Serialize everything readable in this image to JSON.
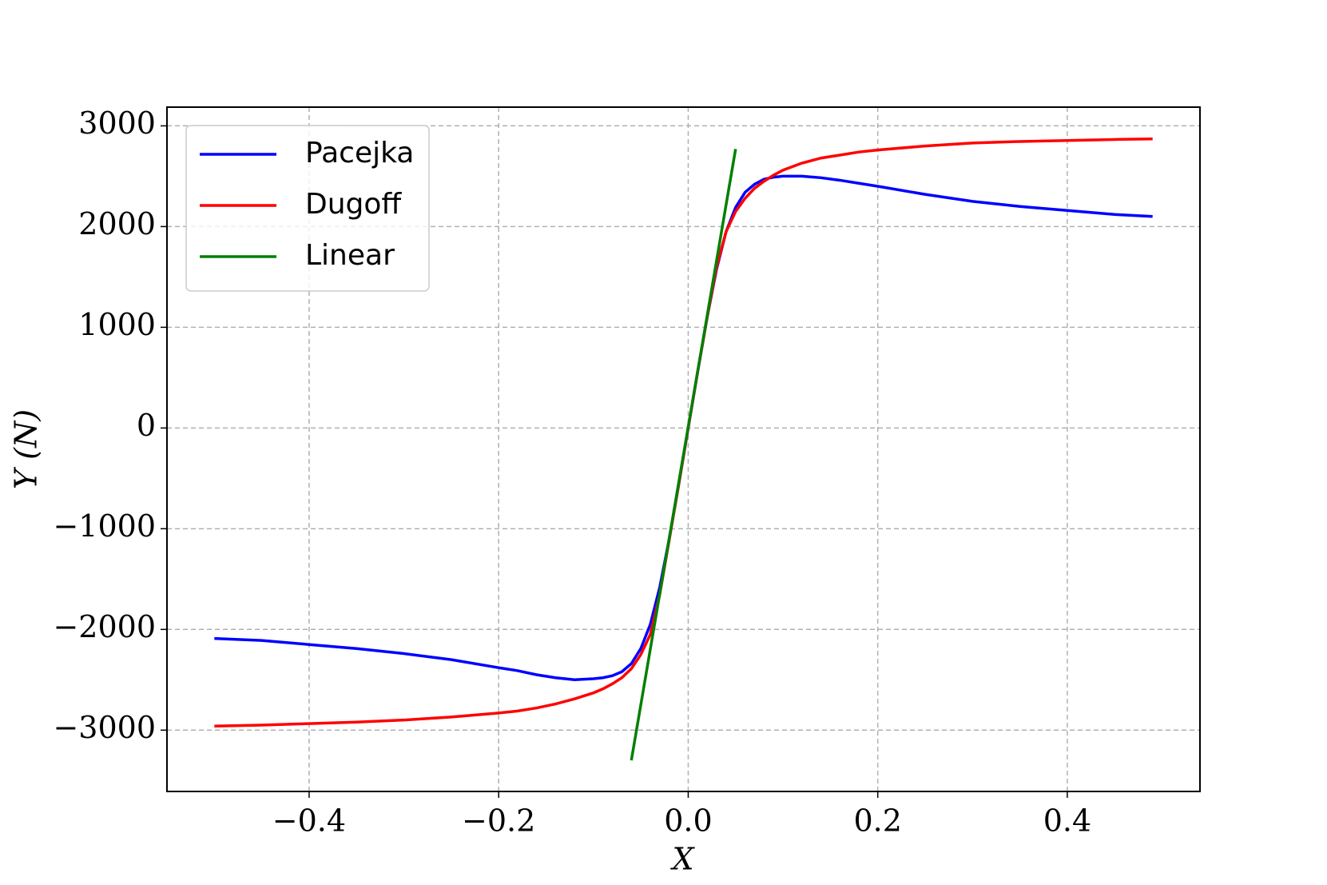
{
  "chart_data": {
    "type": "line",
    "x_label": "X",
    "y_label": "Y (N)",
    "x": [
      -0.5,
      -0.45,
      -0.4,
      -0.35,
      -0.3,
      -0.25,
      -0.2,
      -0.18,
      -0.16,
      -0.14,
      -0.12,
      -0.1,
      -0.09,
      -0.08,
      -0.07,
      -0.06,
      -0.05,
      -0.04,
      -0.03,
      -0.02,
      -0.01,
      0,
      0.01,
      0.02,
      0.03,
      0.04,
      0.05,
      0.06,
      0.07,
      0.08,
      0.09,
      0.1,
      0.12,
      0.14,
      0.16,
      0.18,
      0.2,
      0.25,
      0.3,
      0.35,
      0.4,
      0.45,
      0.49
    ],
    "series": [
      {
        "name": "Pacejka",
        "color": "#0000ff",
        "values": [
          -2090,
          -2110,
          -2150,
          -2190,
          -2240,
          -2300,
          -2380,
          -2410,
          -2450,
          -2480,
          -2500,
          -2490,
          -2480,
          -2460,
          -2420,
          -2340,
          -2190,
          -1950,
          -1580,
          -1100,
          -560,
          0,
          560,
          1100,
          1580,
          1950,
          2190,
          2340,
          2420,
          2470,
          2490,
          2500,
          2500,
          2485,
          2460,
          2430,
          2400,
          2320,
          2250,
          2200,
          2160,
          2120,
          2100
        ]
      },
      {
        "name": "Dugoff",
        "color": "#ff0000",
        "values": [
          -2960,
          -2950,
          -2935,
          -2920,
          -2900,
          -2870,
          -2830,
          -2810,
          -2780,
          -2740,
          -2690,
          -2630,
          -2590,
          -2540,
          -2480,
          -2390,
          -2250,
          -2050,
          -1650,
          -1110,
          -560,
          0,
          560,
          1100,
          1600,
          1950,
          2150,
          2280,
          2380,
          2450,
          2510,
          2560,
          2630,
          2680,
          2710,
          2740,
          2760,
          2800,
          2830,
          2845,
          2855,
          2865,
          2870
        ]
      },
      {
        "name": "Linear",
        "color": "#008000",
        "x": [
          -0.06,
          0.05
        ],
        "values": [
          -3300,
          2770
        ]
      }
    ],
    "xlim": [
      -0.55,
      0.54
    ],
    "ylim": [
      -3609,
      3186
    ],
    "xticks": [
      {
        "value": -0.4,
        "label": "−0.4"
      },
      {
        "value": -0.2,
        "label": "−0.2"
      },
      {
        "value": 0,
        "label": "0.0"
      },
      {
        "value": 0.2,
        "label": "0.2"
      },
      {
        "value": 0.4,
        "label": "0.4"
      }
    ],
    "yticks": [
      {
        "value": -3000,
        "label": "−3000"
      },
      {
        "value": -2000,
        "label": "−2000"
      },
      {
        "value": -1000,
        "label": "−1000"
      },
      0,
      1000,
      2000,
      3000
    ],
    "grid": true,
    "legend": "upper left"
  }
}
